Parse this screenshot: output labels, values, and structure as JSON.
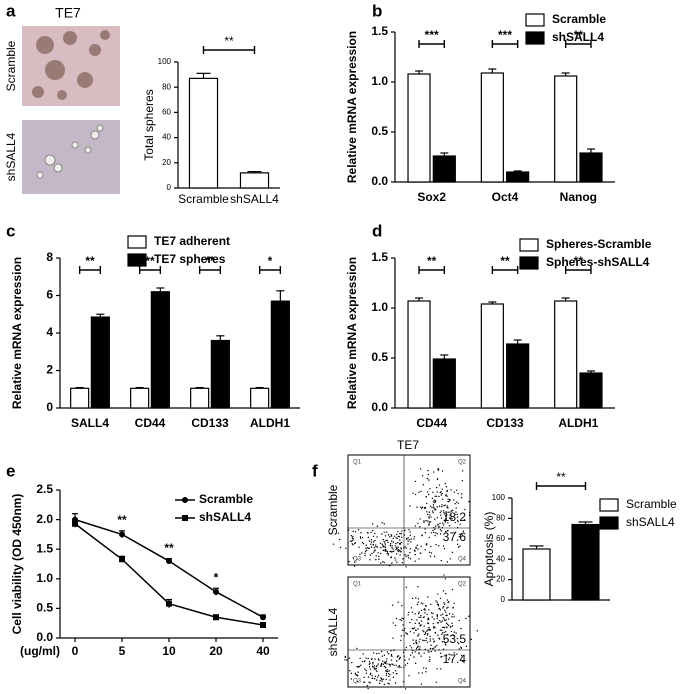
{
  "chart_data": [
    {
      "type": "bar",
      "panel": "a",
      "image_title": "TE7",
      "image_labels": [
        "Scramble",
        "shSALL4"
      ],
      "ylabel": "Total spheres",
      "categories": [
        "Scramble",
        "shSALL4"
      ],
      "values": [
        87,
        12
      ],
      "errors": [
        4,
        1
      ],
      "colors": [
        "#ffffff",
        "#ffffff"
      ],
      "ylim": [
        0,
        100
      ],
      "yticks": [
        0,
        20,
        40,
        60,
        80,
        100
      ],
      "significance": "**"
    },
    {
      "type": "bar",
      "panel": "b",
      "ylabel": "Relative mRNA expression",
      "categories": [
        "Sox2",
        "Oct4",
        "Nanog"
      ],
      "series": [
        {
          "name": "Scramble",
          "color": "#ffffff",
          "values": [
            1.08,
            1.09,
            1.06
          ],
          "errors": [
            0.03,
            0.04,
            0.03
          ]
        },
        {
          "name": "shSALL4",
          "color": "#000000",
          "values": [
            0.26,
            0.1,
            0.29
          ],
          "errors": [
            0.03,
            0.01,
            0.04
          ]
        }
      ],
      "ylim": [
        0,
        1.5
      ],
      "yticks": [
        {
          "value": 0,
          "label": "0.0"
        },
        0.5,
        {
          "value": 1,
          "label": "1.0"
        },
        1.5
      ],
      "significance": [
        "***",
        "***",
        "**"
      ]
    },
    {
      "type": "bar",
      "panel": "c",
      "ylabel": "Relative mRNA expression",
      "categories": [
        "SALL4",
        "CD44",
        "CD133",
        "ALDH1"
      ],
      "series": [
        {
          "name": "TE7 adherent",
          "color": "#ffffff",
          "values": [
            1.05,
            1.05,
            1.05,
            1.05
          ],
          "errors": [
            0.04,
            0.04,
            0.04,
            0.04
          ]
        },
        {
          "name": "TE7 spheres",
          "color": "#000000",
          "values": [
            4.85,
            6.2,
            3.6,
            5.7
          ],
          "errors": [
            0.15,
            0.2,
            0.25,
            0.55
          ]
        }
      ],
      "ylim": [
        0,
        8
      ],
      "yticks": [
        0,
        2,
        4,
        6,
        8
      ],
      "significance": [
        "**",
        "**",
        "**",
        "*"
      ]
    },
    {
      "type": "bar",
      "panel": "d",
      "ylabel": "Relative mRNA expression",
      "categories": [
        "CD44",
        "CD133",
        "ALDH1"
      ],
      "series": [
        {
          "name": "Spheres-Scramble",
          "color": "#ffffff",
          "values": [
            1.07,
            1.04,
            1.07
          ],
          "errors": [
            0.03,
            0.02,
            0.03
          ]
        },
        {
          "name": "Spheres-shSALL4",
          "color": "#000000",
          "values": [
            0.49,
            0.64,
            0.35
          ],
          "errors": [
            0.04,
            0.04,
            0.02
          ]
        }
      ],
      "ylim": [
        0,
        1.5
      ],
      "yticks": [
        {
          "value": 0,
          "label": "0.0"
        },
        0.5,
        {
          "value": 1,
          "label": "1.0"
        },
        1.5
      ],
      "significance": [
        "**",
        "**",
        "**"
      ]
    },
    {
      "type": "line",
      "panel": "e",
      "ylabel": "Cell viability (OD 450nm)",
      "xlabel": "(ug/ml)",
      "categories": [
        "0",
        "5",
        "10",
        "20",
        "40"
      ],
      "series": [
        {
          "name": "Scramble",
          "color": "#000000",
          "values": [
            2.0,
            1.75,
            1.3,
            0.78,
            0.35
          ],
          "errors": [
            0.1,
            0.06,
            0.04,
            0.06,
            0.04
          ]
        },
        {
          "name": "shSALL4",
          "color": "#000000",
          "values": [
            1.93,
            1.33,
            0.58,
            0.35,
            0.22
          ],
          "errors": [
            0.06,
            0.05,
            0.07,
            0.04,
            0.03
          ]
        }
      ],
      "ylim": [
        0,
        2.5
      ],
      "yticks": [
        {
          "value": 0,
          "label": "0.0"
        },
        0.5,
        {
          "value": 1,
          "label": "1.0"
        },
        1.5,
        {
          "value": 2,
          "label": "2.0"
        },
        2.5
      ],
      "significance": [
        null,
        "**",
        "**",
        "*",
        null
      ]
    },
    {
      "type": "bar",
      "panel": "f",
      "image_title": "TE7",
      "image_labels": [
        "Scramble",
        "shSALL4"
      ],
      "quadrant_labels": [
        "Q1",
        "Q2",
        "Q3",
        "Q4"
      ],
      "quadrant_values": [
        [
          18.2,
          37.6
        ],
        [
          53.5,
          17.4
        ]
      ],
      "ylabel": "Apoptosis (%)",
      "categories": [
        "Scramble",
        "shSALL4"
      ],
      "values": [
        50,
        74
      ],
      "errors": [
        3,
        2.5
      ],
      "colors": [
        "#ffffff",
        "#000000"
      ],
      "legend": true,
      "ylim": [
        0,
        100
      ],
      "yticks": [
        0,
        20,
        40,
        60,
        80,
        100
      ],
      "significance": "**"
    }
  ]
}
